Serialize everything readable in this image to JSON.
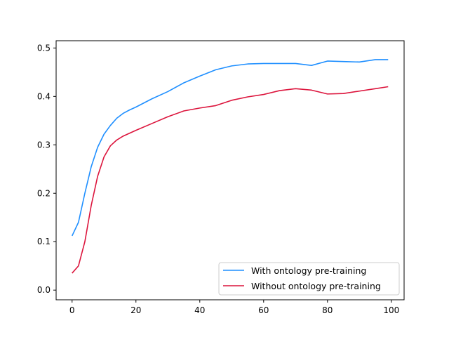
{
  "chart_data": {
    "type": "line",
    "title": "",
    "xlabel": "",
    "ylabel": "",
    "xlim": [
      -5,
      104
    ],
    "ylim": [
      -0.02,
      0.515
    ],
    "x_ticks": [
      0,
      20,
      40,
      60,
      80,
      100
    ],
    "y_ticks": [
      0.0,
      0.1,
      0.2,
      0.3,
      0.4,
      0.5
    ],
    "x_tick_labels": [
      "0",
      "20",
      "40",
      "60",
      "80",
      "100"
    ],
    "y_tick_labels": [
      "0.0",
      "0.1",
      "0.2",
      "0.3",
      "0.4",
      "0.5"
    ],
    "grid": false,
    "legend_position": "lower-right",
    "series": [
      {
        "name": "With ontology pre-training",
        "color": "#1f8fff",
        "x": [
          0,
          2,
          4,
          6,
          8,
          10,
          12,
          14,
          16,
          18,
          20,
          25,
          30,
          35,
          40,
          45,
          50,
          55,
          60,
          65,
          70,
          75,
          80,
          85,
          90,
          95,
          99
        ],
        "y": [
          0.112,
          0.14,
          0.2,
          0.255,
          0.295,
          0.322,
          0.34,
          0.355,
          0.365,
          0.372,
          0.378,
          0.395,
          0.41,
          0.428,
          0.442,
          0.455,
          0.463,
          0.467,
          0.468,
          0.468,
          0.468,
          0.464,
          0.473,
          0.472,
          0.471,
          0.476,
          0.476
        ]
      },
      {
        "name": "Without ontology pre-training",
        "color": "#dc143c",
        "x": [
          0,
          2,
          4,
          6,
          8,
          10,
          12,
          14,
          16,
          18,
          20,
          25,
          30,
          35,
          40,
          45,
          50,
          55,
          60,
          65,
          70,
          75,
          80,
          85,
          90,
          95,
          99
        ],
        "y": [
          0.035,
          0.05,
          0.1,
          0.175,
          0.235,
          0.275,
          0.298,
          0.31,
          0.318,
          0.324,
          0.33,
          0.344,
          0.358,
          0.37,
          0.376,
          0.381,
          0.392,
          0.399,
          0.404,
          0.412,
          0.416,
          0.413,
          0.405,
          0.406,
          0.411,
          0.416,
          0.42
        ]
      }
    ]
  }
}
